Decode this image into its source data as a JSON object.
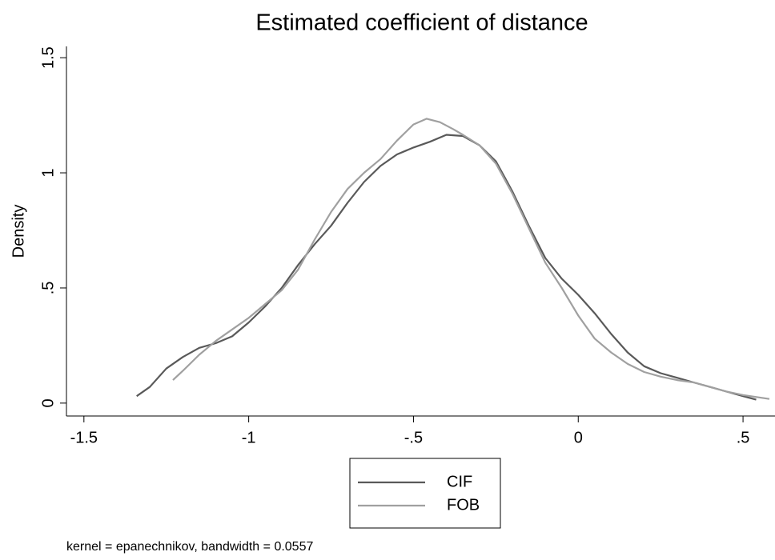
{
  "chart_data": {
    "type": "line",
    "title": "Estimated coefficient of distance",
    "y_label": "Density",
    "note": "kernel = epanechnikov, bandwidth = 0.0557",
    "xlim": [
      -1.553,
      0.597
    ],
    "ylim": [
      -0.056,
      1.549
    ],
    "xticks": [
      -1.5,
      -1,
      {
        "value": -0.5,
        "label": "-.5"
      },
      0,
      {
        "value": 0.5,
        "label": ".5"
      }
    ],
    "yticks": [
      0,
      {
        "value": 0.5,
        "label": ".5"
      },
      1,
      1.5
    ],
    "grid": false,
    "legend": "bottom",
    "series": [
      {
        "name": "CIF",
        "color": "#595959",
        "x": [
          -1.34,
          -1.3,
          -1.25,
          -1.2,
          -1.15,
          -1.1,
          -1.05,
          -1.0,
          -0.95,
          -0.9,
          -0.85,
          -0.8,
          -0.75,
          -0.7,
          -0.65,
          -0.6,
          -0.55,
          -0.5,
          -0.45,
          -0.4,
          -0.35,
          -0.3,
          -0.25,
          -0.2,
          -0.15,
          -0.1,
          -0.05,
          0.0,
          0.05,
          0.1,
          0.15,
          0.2,
          0.25,
          0.3,
          0.35,
          0.4,
          0.45,
          0.5,
          0.54
        ],
        "values": [
          0.03,
          0.07,
          0.15,
          0.2,
          0.24,
          0.26,
          0.29,
          0.35,
          0.42,
          0.5,
          0.6,
          0.69,
          0.77,
          0.87,
          0.96,
          1.03,
          1.08,
          1.11,
          1.135,
          1.165,
          1.16,
          1.12,
          1.05,
          0.92,
          0.77,
          0.63,
          0.54,
          0.47,
          0.39,
          0.3,
          0.22,
          0.16,
          0.13,
          0.11,
          0.09,
          0.07,
          0.05,
          0.03,
          0.015
        ]
      },
      {
        "name": "FOB",
        "color": "#a0a0a0",
        "x": [
          -1.23,
          -1.2,
          -1.15,
          -1.1,
          -1.05,
          -1.0,
          -0.95,
          -0.9,
          -0.85,
          -0.8,
          -0.75,
          -0.7,
          -0.65,
          -0.6,
          -0.55,
          -0.5,
          -0.46,
          -0.42,
          -0.38,
          -0.35,
          -0.3,
          -0.25,
          -0.2,
          -0.15,
          -0.1,
          -0.05,
          0.0,
          0.05,
          0.1,
          0.15,
          0.2,
          0.25,
          0.3,
          0.35,
          0.4,
          0.45,
          0.5,
          0.58
        ],
        "values": [
          0.1,
          0.14,
          0.21,
          0.27,
          0.32,
          0.37,
          0.43,
          0.49,
          0.58,
          0.71,
          0.83,
          0.93,
          1.0,
          1.06,
          1.14,
          1.21,
          1.235,
          1.22,
          1.19,
          1.165,
          1.12,
          1.04,
          0.91,
          0.76,
          0.61,
          0.5,
          0.38,
          0.28,
          0.22,
          0.17,
          0.135,
          0.115,
          0.1,
          0.09,
          0.07,
          0.05,
          0.035,
          0.018
        ]
      }
    ]
  }
}
